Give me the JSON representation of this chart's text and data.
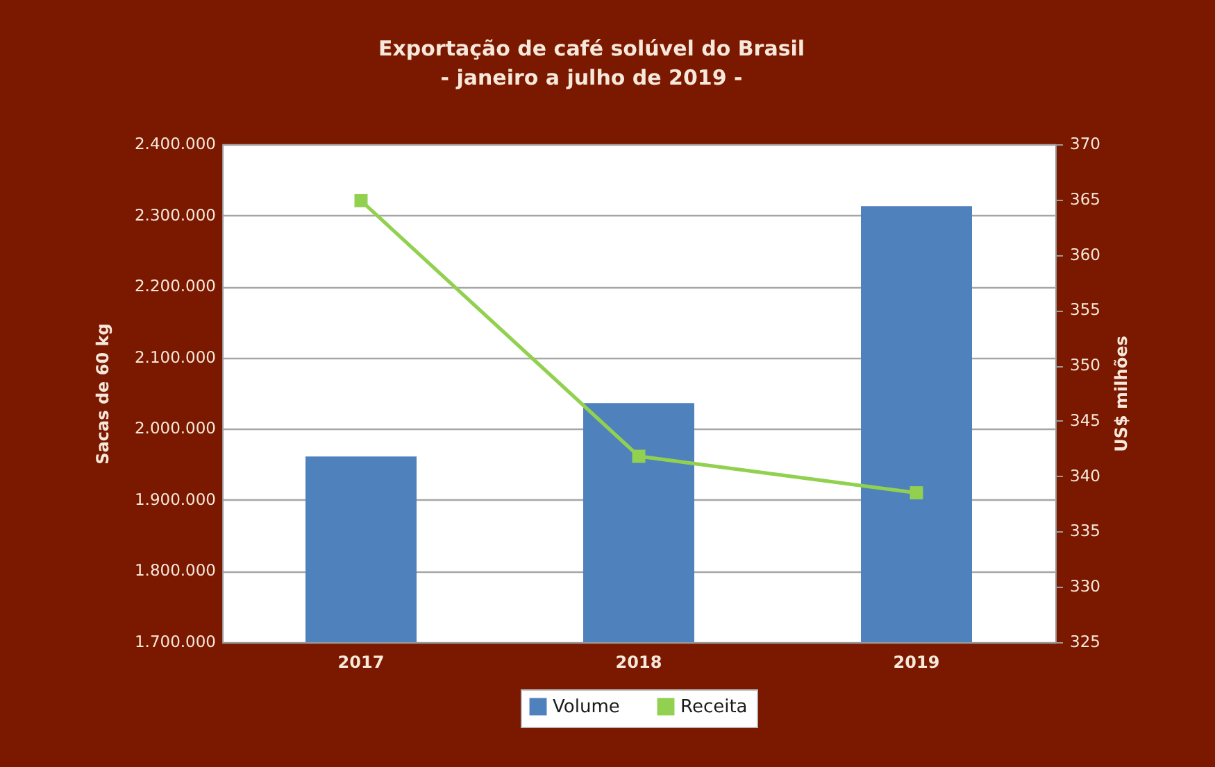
{
  "chart_data": {
    "type": "bar",
    "title": "Exportação de café solúvel do Brasil",
    "subtitle": "- janeiro a julho de 2019 -",
    "ylabel": "Sacas de 60 kg",
    "y2label": "US$ milhões",
    "categories": [
      "2017",
      "2018",
      "2019"
    ],
    "series": [
      {
        "name": "Volume",
        "type": "bar",
        "color": "#4f81bd",
        "values": [
          1961000,
          2036000,
          2313000
        ]
      },
      {
        "name": "Receita",
        "type": "line",
        "axis": "y2",
        "color": "#92d050",
        "values": [
          364.9,
          341.8,
          338.5
        ]
      }
    ],
    "ylim": [
      1700000,
      2400000
    ],
    "yticks": [
      {
        "value": 1700000,
        "label": "1.700.000"
      },
      {
        "value": 1800000,
        "label": "1.800.000"
      },
      {
        "value": 1900000,
        "label": "1.900.000"
      },
      {
        "value": 2000000,
        "label": "2.000.000"
      },
      {
        "value": 2100000,
        "label": "2.100.000"
      },
      {
        "value": 2200000,
        "label": "2.200.000"
      },
      {
        "value": 2300000,
        "label": "2.300.000"
      },
      {
        "value": 2400000,
        "label": "2.400.000"
      }
    ],
    "y2lim": [
      325,
      370
    ],
    "y2ticks": [
      325,
      330,
      335,
      340,
      345,
      350,
      355,
      360,
      365,
      370
    ],
    "grid": "y",
    "legend": "bottom",
    "marker": "square"
  }
}
